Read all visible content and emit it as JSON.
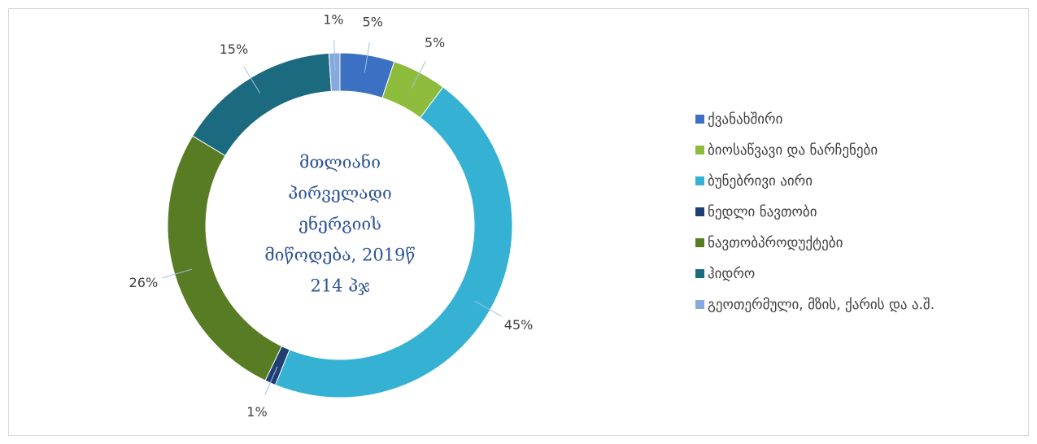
{
  "chart_data": {
    "type": "doughnut",
    "center_text": [
      "მთლიანი",
      "პირველადი",
      "ენერგიის",
      "მიწოდება, 2019წ",
      "214 პჯ"
    ],
    "categories": [
      "ქვანახშირი",
      "ბიოსაწვავი და ნარჩენები",
      "ბუნებრივი აირი",
      "ნედლი ნავთობი",
      "ნავთობპროდუქტები",
      "ჰიდრო",
      "გეოთერმული, მზის, ქარის და ა.შ."
    ],
    "values": [
      5,
      5,
      45,
      1,
      26,
      15,
      1
    ],
    "value_labels": [
      "5%",
      "5%",
      "45%",
      "1%",
      "26%",
      "15%",
      "1%"
    ],
    "colors": [
      "#3b70c2",
      "#8dbb3c",
      "#35b1d4",
      "#1f3f72",
      "#587c24",
      "#1c6a80",
      "#86a8dc"
    ],
    "legend": "right"
  }
}
